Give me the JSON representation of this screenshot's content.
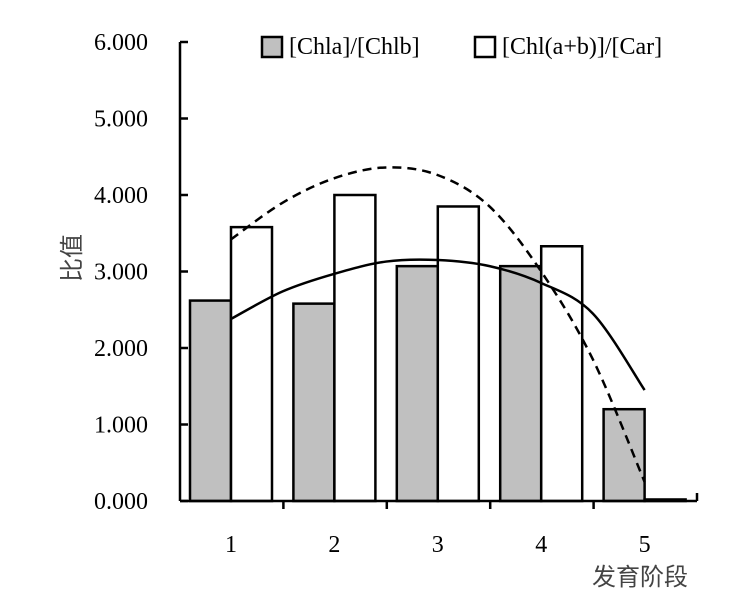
{
  "chart_data": {
    "type": "bar",
    "categories": [
      "1",
      "2",
      "3",
      "4",
      "5"
    ],
    "series": [
      {
        "name": "[Chla]/[Chlb]",
        "values": [
          2.62,
          2.58,
          3.07,
          3.07,
          1.2
        ],
        "color": "#c0c0c0"
      },
      {
        "name": "[Chl(a+b)]/[Car]",
        "values": [
          3.58,
          4.0,
          3.85,
          3.33,
          0.02
        ],
        "color": "#ffffff"
      }
    ],
    "trendlines": [
      {
        "series": "[Chla]/[Chlb]",
        "style": "solid",
        "x": [
          0.0,
          0.5,
          1.0,
          1.5,
          2.0,
          2.5,
          3.0,
          3.5,
          4.0
        ],
        "y": [
          2.38,
          2.74,
          2.97,
          3.13,
          3.15,
          3.07,
          2.85,
          2.45,
          1.45
        ]
      },
      {
        "series": "[Chl(a+b)]/[Car]",
        "style": "dashed",
        "x": [
          0.0,
          0.5,
          1.0,
          1.5,
          2.0,
          2.5,
          3.0,
          3.5,
          4.0
        ],
        "y": [
          3.42,
          3.9,
          4.22,
          4.36,
          4.26,
          3.85,
          3.0,
          1.85,
          0.25
        ]
      }
    ],
    "ylabel": "比值",
    "xlabel": "发育阶段",
    "ylim": [
      0,
      6
    ],
    "yticks": [
      "0.000",
      "1.000",
      "2.000",
      "3.000",
      "4.000",
      "5.000",
      "6.000"
    ],
    "grid": false,
    "legend_position": "top-right"
  }
}
